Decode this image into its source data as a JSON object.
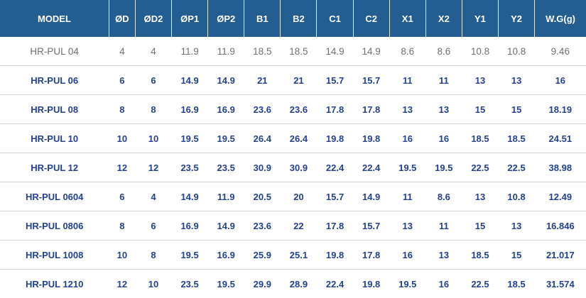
{
  "colors": {
    "header_bg": "#245d8f",
    "header_text": "#ffffff",
    "header_divider": "#dde5ec",
    "row_text": "#24418f",
    "muted_row_text": "#6f6f6f",
    "row_divider": "#d2d5da",
    "row_bg": "#ffffff"
  },
  "chart_data": {
    "type": "table",
    "columns": [
      "MODEL",
      "ØD",
      "ØD2",
      "ØP1",
      "ØP2",
      "B1",
      "B2",
      "C1",
      "C2",
      "X1",
      "X2",
      "Y1",
      "Y2",
      "W.G(g)"
    ],
    "rows": [
      [
        "HR-PUL 04",
        "4",
        "4",
        "11.9",
        "11.9",
        "18.5",
        "18.5",
        "14.9",
        "14.9",
        "8.6",
        "8.6",
        "10.8",
        "10.8",
        "9.46"
      ],
      [
        "HR-PUL 06",
        "6",
        "6",
        "14.9",
        "14.9",
        "21",
        "21",
        "15.7",
        "15.7",
        "11",
        "11",
        "13",
        "13",
        "16"
      ],
      [
        "HR-PUL 08",
        "8",
        "8",
        "16.9",
        "16.9",
        "23.6",
        "23.6",
        "17.8",
        "17.8",
        "13",
        "13",
        "15",
        "15",
        "18.19"
      ],
      [
        "HR-PUL 10",
        "10",
        "10",
        "19.5",
        "19.5",
        "26.4",
        "26.4",
        "19.8",
        "19.8",
        "16",
        "16",
        "18.5",
        "18.5",
        "24.51"
      ],
      [
        "HR-PUL 12",
        "12",
        "12",
        "23.5",
        "23.5",
        "30.9",
        "30.9",
        "22.4",
        "22.4",
        "19.5",
        "19.5",
        "22.5",
        "22.5",
        "38.98"
      ],
      [
        "HR-PUL 0604",
        "6",
        "4",
        "14.9",
        "11.9",
        "20.5",
        "20",
        "15.7",
        "14.9",
        "11",
        "8.6",
        "13",
        "10.8",
        "12.49"
      ],
      [
        "HR-PUL 0806",
        "8",
        "6",
        "16.9",
        "14.9",
        "23.6",
        "22",
        "17.8",
        "15.7",
        "13",
        "11",
        "15",
        "13",
        "16.846"
      ],
      [
        "HR-PUL 1008",
        "10",
        "8",
        "19.5",
        "16.9",
        "25.9",
        "25.1",
        "19.8",
        "17.8",
        "16",
        "13",
        "18.5",
        "15",
        "21.017"
      ],
      [
        "HR-PUL 1210",
        "12",
        "10",
        "23.5",
        "19.5",
        "29.9",
        "28.9",
        "22.4",
        "19.8",
        "19.5",
        "16",
        "22.5",
        "18.5",
        "31.574"
      ]
    ],
    "muted_row_indices": [
      0
    ],
    "title": "",
    "legend": "none",
    "grid": "horizontal-dividers"
  }
}
